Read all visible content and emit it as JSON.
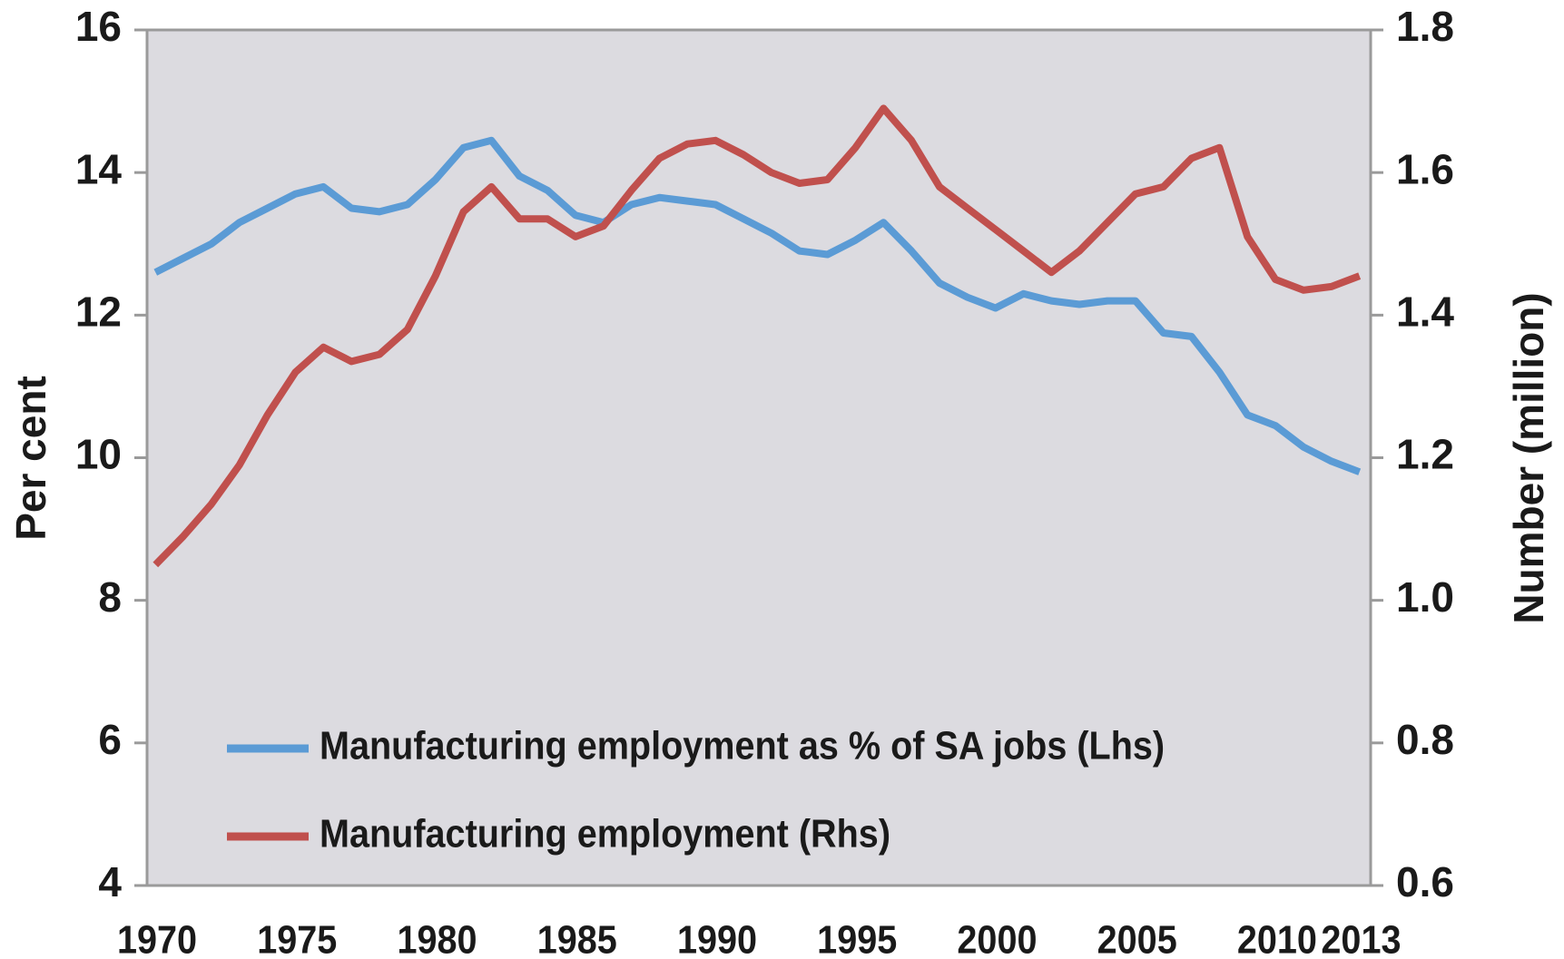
{
  "chart_data": {
    "type": "line",
    "ylabel": "Per cent",
    "y2label": "Number (million)",
    "x": [
      1970,
      1971,
      1972,
      1973,
      1974,
      1975,
      1976,
      1977,
      1978,
      1979,
      1980,
      1981,
      1982,
      1983,
      1984,
      1985,
      1986,
      1987,
      1988,
      1989,
      1990,
      1991,
      1992,
      1993,
      1994,
      1995,
      1996,
      1997,
      1998,
      1999,
      2000,
      2001,
      2002,
      2003,
      2004,
      2005,
      2006,
      2007,
      2008,
      2009,
      2010,
      2011,
      2012,
      2013
    ],
    "series": [
      {
        "name": "Manufacturing employment as % of SA jobs (Lhs)",
        "color": "#5b9bd5",
        "axis": "y",
        "values": [
          12.6,
          12.8,
          13.0,
          13.3,
          13.5,
          13.7,
          13.8,
          13.5,
          13.45,
          13.55,
          13.9,
          14.35,
          14.45,
          13.95,
          13.75,
          13.4,
          13.3,
          13.55,
          13.65,
          13.6,
          13.55,
          13.35,
          13.15,
          12.9,
          12.85,
          13.05,
          13.3,
          12.9,
          12.45,
          12.25,
          12.1,
          12.3,
          12.2,
          12.15,
          12.2,
          12.2,
          11.75,
          11.7,
          11.2,
          10.6,
          10.45,
          10.15,
          9.95,
          9.8
        ]
      },
      {
        "name": "Manufacturing employment (Rhs)",
        "color": "#c0504d",
        "axis": "y2",
        "values": [
          1.05,
          1.09,
          1.135,
          1.19,
          1.26,
          1.32,
          1.355,
          1.335,
          1.345,
          1.38,
          1.455,
          1.545,
          1.58,
          1.535,
          1.535,
          1.51,
          1.525,
          1.575,
          1.62,
          1.64,
          1.645,
          1.625,
          1.6,
          1.585,
          1.59,
          1.635,
          1.69,
          1.645,
          1.58,
          1.55,
          1.52,
          1.49,
          1.46,
          1.49,
          1.53,
          1.57,
          1.58,
          1.62,
          1.635,
          1.51,
          1.45,
          1.435,
          1.44,
          1.455
        ]
      }
    ],
    "xlim": [
      1969.7,
      2013.4
    ],
    "xticks": [
      1970,
      1975,
      1980,
      1985,
      1990,
      1995,
      2000,
      2005,
      2010,
      2013
    ],
    "ylim": [
      4,
      16
    ],
    "yticks": [
      4,
      6,
      8,
      10,
      12,
      14,
      16
    ],
    "y2lim": [
      0.6,
      1.8
    ],
    "y2ticks": [
      0.6,
      0.8,
      {
        "value": 1.0,
        "label": "1.0"
      },
      1.2,
      1.4,
      1.6,
      1.8
    ],
    "grid": false,
    "legend": "lower left",
    "background": "#dcdbe0"
  }
}
